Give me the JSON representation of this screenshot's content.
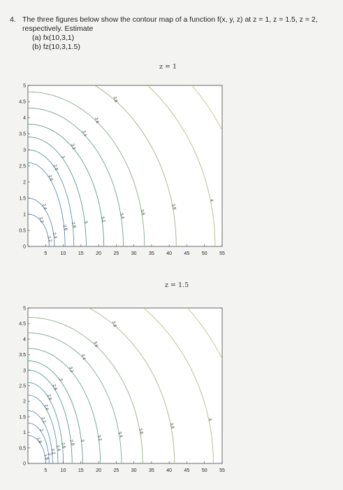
{
  "problem": {
    "number": "4.",
    "statement_line1": "The three figures below show the contour map of a function f(x, y, z) at z = 1, z = 1.5, z = 2,",
    "statement_line2": "respectively. Estimate",
    "part_a": "(a)  fx(10,3,1)",
    "part_b": "(b)  fz(10,3,1.5)"
  },
  "colors": {
    "frame": "#444444",
    "contour_low": "#5b8db8",
    "contour_mid": "#5f9a8a",
    "contour_high": "#c9c28a"
  },
  "chart_data": [
    {
      "type": "contour",
      "title": "z = 1",
      "xlabel": "",
      "ylabel": "",
      "xlim": [
        0,
        55
      ],
      "ylim": [
        0,
        5
      ],
      "x_ticks": [
        "5",
        "10",
        "15",
        "20",
        "25",
        "30",
        "35",
        "40",
        "45",
        "50",
        "55"
      ],
      "y_ticks": [
        "0",
        "0.5",
        "1",
        "1.5",
        "2",
        "2.5",
        "3",
        "3.5",
        "4",
        "4.5",
        "5"
      ],
      "contours": [
        {
          "level": "2.2",
          "x_intercept": 6.0,
          "y_intercept": 1.0
        },
        {
          "level": "2.4",
          "x_intercept": 7.5,
          "y_intercept": 1.5
        },
        {
          "level": "2.6",
          "x_intercept": 10.5,
          "y_intercept": 2.6
        },
        {
          "level": "2.8",
          "x_intercept": 13.0,
          "y_intercept": 3.0
        },
        {
          "level": "3",
          "x_intercept": 16.5,
          "y_intercept": 3.4
        },
        {
          "level": "3.2",
          "x_intercept": 21.5,
          "y_intercept": 3.8
        },
        {
          "level": "3.4",
          "x_intercept": 27.0,
          "y_intercept": 4.3
        },
        {
          "level": "3.6",
          "x_intercept": 33.0,
          "y_intercept": 4.8
        },
        {
          "level": "3.8",
          "x_intercept": 42.0,
          "y_intercept": 5.6
        },
        {
          "level": "4",
          "x_intercept": 53.0,
          "y_intercept": 6.5
        },
        {
          "level": "4.2",
          "x_intercept": 63.0,
          "y_intercept": 7.4
        }
      ]
    },
    {
      "type": "contour",
      "title": "z = 1.5",
      "xlabel": "",
      "ylabel": "",
      "xlim": [
        0,
        55
      ],
      "ylim": [
        0,
        5
      ],
      "x_ticks": [
        "5",
        "10",
        "15",
        "20",
        "25",
        "30",
        "35",
        "40",
        "45",
        "50",
        "55"
      ],
      "y_ticks": [
        "0",
        "0.5",
        "1",
        "1.5",
        "2",
        "2.5",
        "3",
        "3.5",
        "4",
        "4.5",
        "5"
      ],
      "contours": [
        {
          "level": "1.8",
          "x_intercept": 5.0,
          "y_intercept": 0.9
        },
        {
          "level": "2",
          "x_intercept": 6.0,
          "y_intercept": 1.3
        },
        {
          "level": "2.2",
          "x_intercept": 7.0,
          "y_intercept": 1.7
        },
        {
          "level": "2.4",
          "x_intercept": 8.5,
          "y_intercept": 2.2
        },
        {
          "level": "2.6",
          "x_intercept": 10.0,
          "y_intercept": 2.6
        },
        {
          "level": "2.8",
          "x_intercept": 12.5,
          "y_intercept": 3.0
        },
        {
          "level": "3",
          "x_intercept": 15.5,
          "y_intercept": 3.3
        },
        {
          "level": "3.2",
          "x_intercept": 20.5,
          "y_intercept": 3.7
        },
        {
          "level": "3.4",
          "x_intercept": 26.5,
          "y_intercept": 4.2
        },
        {
          "level": "3.6",
          "x_intercept": 32.5,
          "y_intercept": 4.7
        },
        {
          "level": "3.8",
          "x_intercept": 41.5,
          "y_intercept": 5.5
        },
        {
          "level": "4",
          "x_intercept": 52.5,
          "y_intercept": 6.4
        },
        {
          "level": "4.2",
          "x_intercept": 62.0,
          "y_intercept": 7.3
        }
      ]
    }
  ]
}
